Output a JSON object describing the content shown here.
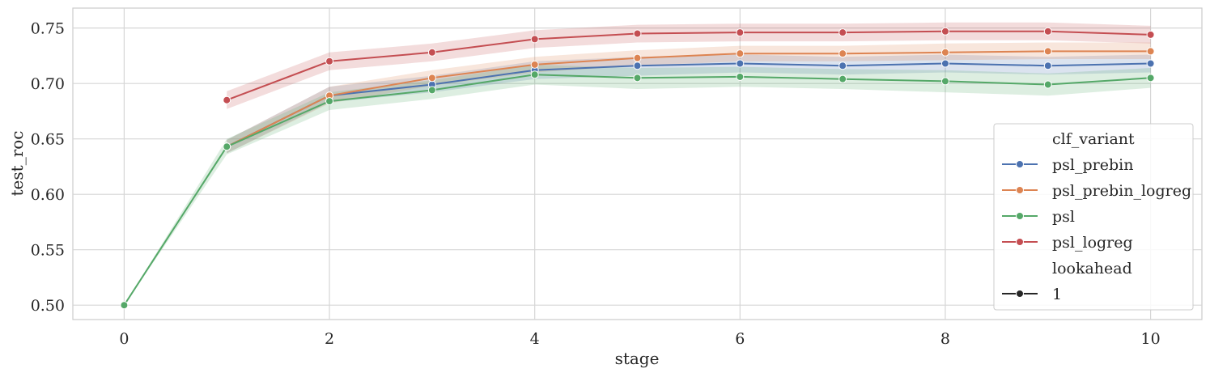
{
  "chart_data": {
    "type": "line",
    "xlabel": "stage",
    "ylabel": "test_roc",
    "xlim": [
      -0.5,
      10.5
    ],
    "ylim": [
      0.487,
      0.768
    ],
    "x_ticks": [
      0,
      2,
      4,
      6,
      8,
      10
    ],
    "y_ticks": [
      0.5,
      0.55,
      0.6,
      0.65,
      0.7,
      0.75
    ],
    "grid": true,
    "legend": {
      "placement": "lower-right",
      "hue_title": "clf_variant",
      "style_title": "lookahead",
      "style_entries": [
        "1"
      ]
    },
    "series": [
      {
        "name": "psl_prebin",
        "color": "#4c72b0",
        "x": [
          1,
          2,
          3,
          4,
          5,
          6,
          7,
          8,
          9,
          10
        ],
        "y": [
          0.643,
          0.689,
          0.699,
          0.712,
          0.716,
          0.718,
          0.716,
          0.718,
          0.716,
          0.718
        ],
        "lower": [
          0.637,
          0.683,
          0.692,
          0.704,
          0.707,
          0.71,
          0.708,
          0.71,
          0.708,
          0.71
        ],
        "upper": [
          0.649,
          0.697,
          0.707,
          0.72,
          0.724,
          0.726,
          0.724,
          0.726,
          0.724,
          0.726
        ]
      },
      {
        "name": "psl_prebin_logreg",
        "color": "#dd8452",
        "x": [
          1,
          2,
          3,
          4,
          5,
          6,
          7,
          8,
          9,
          10
        ],
        "y": [
          0.643,
          0.689,
          0.705,
          0.717,
          0.723,
          0.727,
          0.727,
          0.728,
          0.729,
          0.729
        ],
        "lower": [
          0.637,
          0.682,
          0.698,
          0.71,
          0.716,
          0.72,
          0.72,
          0.721,
          0.722,
          0.722
        ],
        "upper": [
          0.649,
          0.697,
          0.712,
          0.724,
          0.73,
          0.734,
          0.734,
          0.736,
          0.737,
          0.737
        ]
      },
      {
        "name": "psl",
        "color": "#55a868",
        "x": [
          0,
          1,
          2,
          3,
          4,
          5,
          6,
          7,
          8,
          9,
          10
        ],
        "y": [
          0.5,
          0.643,
          0.684,
          0.694,
          0.708,
          0.705,
          0.706,
          0.704,
          0.702,
          0.699,
          0.705
        ],
        "lower": [
          0.5,
          0.636,
          0.676,
          0.686,
          0.699,
          0.695,
          0.697,
          0.695,
          0.692,
          0.689,
          0.696
        ],
        "upper": [
          0.5,
          0.65,
          0.692,
          0.703,
          0.717,
          0.714,
          0.715,
          0.713,
          0.712,
          0.709,
          0.714
        ]
      },
      {
        "name": "psl_logreg",
        "color": "#c44e52",
        "x": [
          1,
          2,
          3,
          4,
          5,
          6,
          7,
          8,
          9,
          10
        ],
        "y": [
          0.685,
          0.72,
          0.728,
          0.74,
          0.745,
          0.746,
          0.746,
          0.747,
          0.747,
          0.744
        ],
        "lower": [
          0.677,
          0.712,
          0.72,
          0.732,
          0.737,
          0.738,
          0.738,
          0.739,
          0.739,
          0.736
        ],
        "upper": [
          0.693,
          0.728,
          0.736,
          0.748,
          0.753,
          0.754,
          0.754,
          0.755,
          0.755,
          0.752
        ]
      }
    ]
  }
}
